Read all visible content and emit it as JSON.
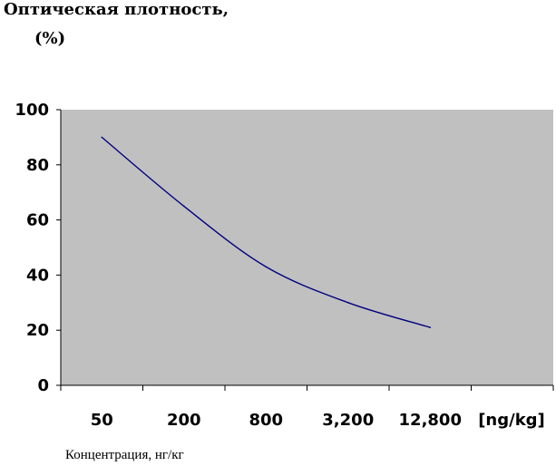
{
  "chart_data": {
    "type": "line",
    "title_line1": "Оптическая плотность,",
    "title_line2": "(%)",
    "xlabel": "Концентрация, нг/кг",
    "unit_label": "[ng/kg]",
    "categories": [
      "50",
      "200",
      "800",
      "3,200",
      "12,800"
    ],
    "yticks": [
      "0",
      "20",
      "40",
      "60",
      "80",
      "100"
    ],
    "ylim": [
      0,
      100
    ],
    "grid": false,
    "legend": "none",
    "series": [
      {
        "values": [
          90,
          65,
          43,
          30,
          21
        ]
      }
    ],
    "colors": {
      "plot_bg": "#c0c0c0",
      "line": "#000080",
      "axis": "#000000"
    }
  }
}
